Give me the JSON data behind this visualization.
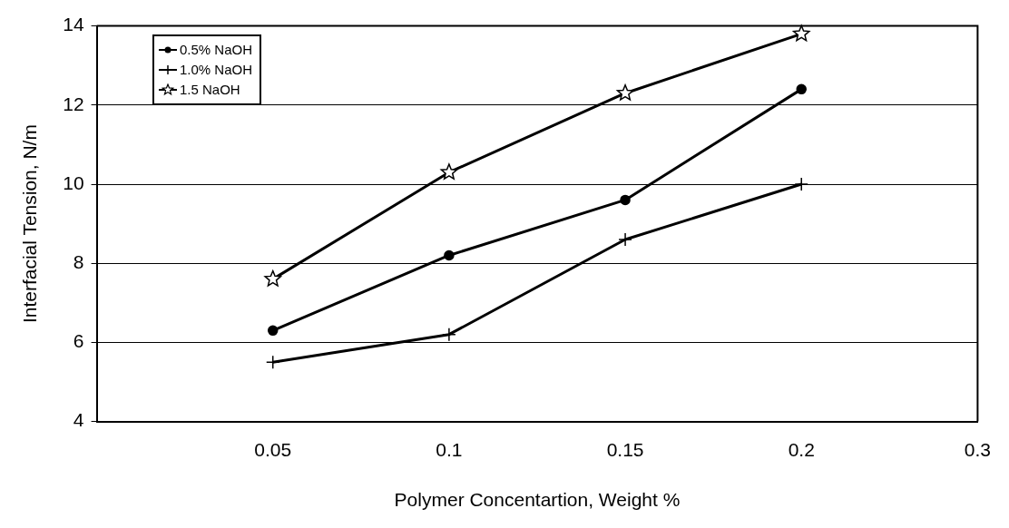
{
  "chart_data": {
    "type": "line",
    "xlabel": "Polymer Concentartion, Weight %",
    "ylabel": "Interfacial Tension, N/m",
    "categories": [
      null,
      "0.05",
      "0.1",
      "0.15",
      "0.2",
      "0.3"
    ],
    "series": [
      {
        "name": "0.5% NaOH",
        "color": "#000000",
        "marker": "circle",
        "values": [
          null,
          6.3,
          8.2,
          9.6,
          12.4,
          null
        ]
      },
      {
        "name": "1.0% NaOH",
        "color": "#000000",
        "marker": "cross",
        "values": [
          null,
          5.5,
          6.2,
          8.6,
          10.0,
          null
        ]
      },
      {
        "name": "1.5 NaOH",
        "color": "#000000",
        "marker": "star",
        "values": [
          null,
          7.6,
          10.3,
          12.3,
          13.8,
          null
        ]
      }
    ],
    "ylim": [
      4,
      14
    ],
    "yticks": [
      4,
      6,
      8,
      10,
      12,
      14
    ],
    "grid": "y",
    "legend": "top left",
    "line_style": "solid"
  }
}
